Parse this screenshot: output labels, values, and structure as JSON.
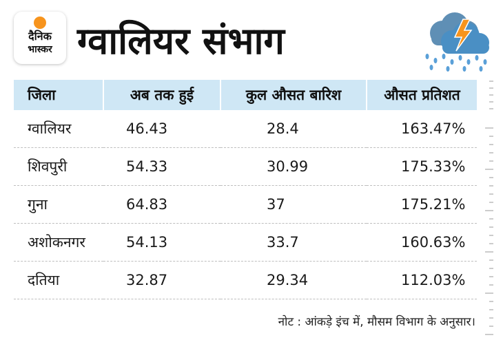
{
  "logo": {
    "line1": "दैनिक",
    "line2": "भास्कर"
  },
  "title": "ग्वालियर संभाग",
  "weather_icon": "rain-cloud-lightning-icon",
  "table": {
    "headers": [
      "जिला",
      "अब तक हुई",
      "कुल औसत बारिश",
      "औसत प्रतिशत"
    ],
    "rows": [
      [
        "ग्वालियर",
        "46.43",
        "28.4",
        "163.47%"
      ],
      [
        "शिवपुरी",
        "54.33",
        "30.99",
        "175.33%"
      ],
      [
        "गुना",
        "64.83",
        "37",
        "175.21%"
      ],
      [
        "अशोकनगर",
        "54.13",
        "33.7",
        "160.63%"
      ],
      [
        "दतिया",
        "32.87",
        "29.34",
        "112.03%"
      ]
    ]
  },
  "note": "नोट : आंकड़े इंच में, मौसम विभाग के अनुसार।",
  "colors": {
    "header_bg": "#cfe7f5",
    "logo_sun": "#f7941d",
    "cloud": "#4a8fc4",
    "lightning": "#f7941d",
    "rain": "#5aa0d8"
  }
}
